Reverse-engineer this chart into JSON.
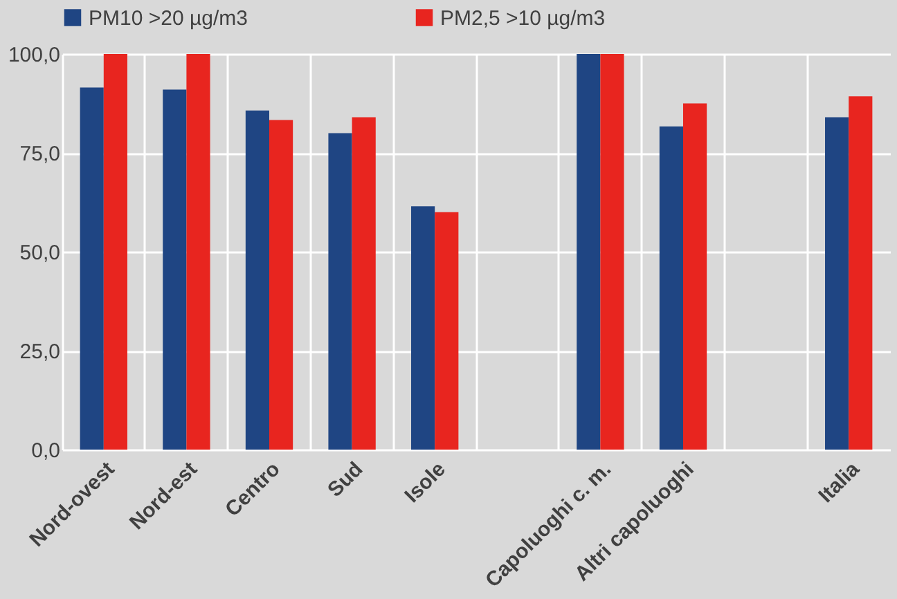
{
  "chart_data": {
    "type": "bar",
    "categories": [
      "Nord-ovest",
      "Nord-est",
      "Centro",
      "Sud",
      "Isole",
      null,
      "Capoluoghi c. m.",
      "Altri capoluoghi",
      null,
      "Italia"
    ],
    "series": [
      {
        "name": "PM10 >20 µg/m3",
        "color": "#1f4583",
        "values": [
          91.5,
          91,
          85.7,
          80,
          61.5,
          null,
          100,
          81.7,
          null,
          84
        ]
      },
      {
        "name": "PM2,5 >10 µg/m3",
        "color": "#e8251f",
        "values": [
          100,
          100,
          83.3,
          84,
          60,
          null,
          100,
          87.5,
          null,
          89.3
        ]
      }
    ],
    "ylim": [
      0,
      100
    ],
    "yticks": [
      {
        "value": 0,
        "label": "0,0"
      },
      {
        "value": 25,
        "label": "25,0"
      },
      {
        "value": 50,
        "label": "50,0"
      },
      {
        "value": 75,
        "label": "75,0"
      },
      {
        "value": 100,
        "label": "100,0"
      }
    ],
    "grid": true,
    "legend": "top"
  }
}
